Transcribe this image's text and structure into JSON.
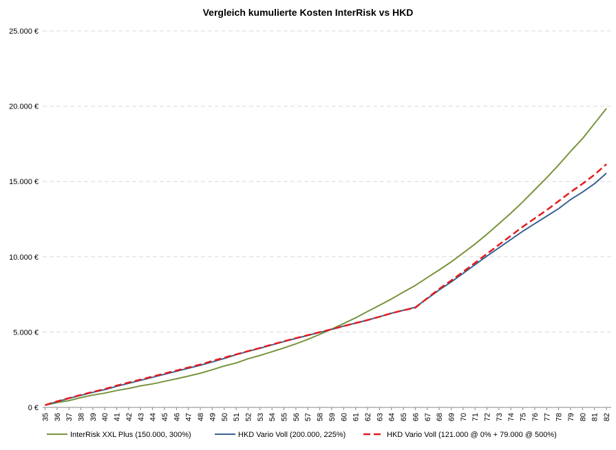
{
  "chart_data": {
    "type": "line",
    "title": "Vergleich kumulierte Kosten InterRisk vs HKD",
    "xlabel": "",
    "ylabel": "",
    "ylim": [
      0,
      25000
    ],
    "y_ticks": [
      0,
      5000,
      10000,
      15000,
      20000,
      25000
    ],
    "y_tick_labels": [
      "0 €",
      "5.000 €",
      "10.000 €",
      "15.000 €",
      "20.000 €",
      "25.000 €"
    ],
    "grid": "horizontal dashed",
    "legend": "bottom",
    "x": [
      35,
      36,
      37,
      38,
      39,
      40,
      41,
      42,
      43,
      44,
      45,
      46,
      47,
      48,
      49,
      50,
      51,
      52,
      53,
      54,
      55,
      56,
      57,
      58,
      59,
      60,
      61,
      62,
      63,
      64,
      65,
      66,
      67,
      68,
      69,
      70,
      71,
      72,
      73,
      74,
      75,
      76,
      77,
      78,
      79,
      80,
      81,
      82
    ],
    "series": [
      {
        "name": "InterRisk XXL Plus (150.000, 300%)",
        "color": "#77933c",
        "style": "solid",
        "values": [
          150,
          320,
          450,
          650,
          820,
          950,
          1120,
          1260,
          1430,
          1560,
          1730,
          1900,
          2080,
          2270,
          2500,
          2750,
          2950,
          3230,
          3450,
          3700,
          3950,
          4220,
          4520,
          4850,
          5200,
          5570,
          5950,
          6370,
          6780,
          7200,
          7660,
          8100,
          8620,
          9130,
          9660,
          10250,
          10850,
          11500,
          12200,
          12900,
          13650,
          14450,
          15250,
          16100,
          17000,
          17850,
          18850,
          19850
        ]
      },
      {
        "name": "HKD Vario Voll (200.000, 225%)",
        "color": "#376092",
        "style": "solid",
        "values": [
          150,
          380,
          600,
          800,
          1000,
          1180,
          1400,
          1600,
          1800,
          2000,
          2200,
          2400,
          2600,
          2800,
          3020,
          3250,
          3500,
          3720,
          3930,
          4150,
          4370,
          4580,
          4780,
          4980,
          5180,
          5400,
          5600,
          5800,
          6020,
          6250,
          6450,
          6650,
          7220,
          7800,
          8330,
          8900,
          9480,
          10050,
          10600,
          11150,
          11700,
          12200,
          12700,
          13200,
          13800,
          14300,
          14850,
          15550
        ]
      },
      {
        "name": "HKD Vario Voll (121.000 @ 0% + 79.000 @ 500%)",
        "color": "#e31a1c",
        "style": "dashed",
        "values": [
          150,
          400,
          620,
          830,
          1030,
          1220,
          1450,
          1650,
          1850,
          2050,
          2250,
          2450,
          2650,
          2850,
          3080,
          3300,
          3520,
          3740,
          3950,
          4170,
          4390,
          4600,
          4800,
          5000,
          5190,
          5400,
          5600,
          5800,
          6020,
          6250,
          6450,
          6620,
          7250,
          7870,
          8420,
          9000,
          9600,
          10200,
          10800,
          11400,
          12000,
          12550,
          13100,
          13700,
          14300,
          14850,
          15450,
          16150
        ]
      }
    ]
  }
}
